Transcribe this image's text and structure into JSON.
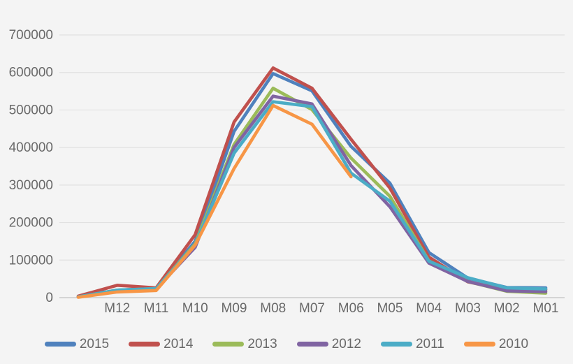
{
  "chart_theme": {
    "background": "#f4f4f4",
    "gridline_color": "#e1e1e1",
    "axis_line_color": "#c9c9c9",
    "text_color": "#696969"
  },
  "chart_data": {
    "type": "line",
    "title": "",
    "categories": [
      "",
      "M12",
      "M11",
      "M10",
      "M09",
      "M08",
      "M07",
      "M06",
      "M05",
      "M04",
      "M03",
      "M02",
      "M01"
    ],
    "series": [
      {
        "name": "2015",
        "color": "#4F81BD",
        "values": [
          2000,
          20000,
          25000,
          150000,
          443000,
          597000,
          551000,
          403000,
          305000,
          120000,
          52000,
          27000,
          26000
        ]
      },
      {
        "name": "2014",
        "color": "#C0504D",
        "values": [
          4000,
          33000,
          26000,
          168000,
          468000,
          612000,
          558000,
          422000,
          292000,
          108000,
          42000,
          20000,
          21000
        ]
      },
      {
        "name": "2013",
        "color": "#9BBB59",
        "values": [
          2000,
          20000,
          24000,
          143000,
          408000,
          558000,
          501000,
          372000,
          270000,
          98000,
          43000,
          17000,
          12000
        ]
      },
      {
        "name": "2012",
        "color": "#8064A2",
        "values": [
          2000,
          19000,
          23000,
          134000,
          400000,
          537000,
          516000,
          352000,
          242000,
          92000,
          43000,
          18000,
          16000
        ]
      },
      {
        "name": "2011",
        "color": "#4BACC6",
        "values": [
          2000,
          20000,
          24000,
          140000,
          385000,
          522000,
          509000,
          332000,
          257000,
          97000,
          53000,
          26000,
          23000
        ]
      },
      {
        "name": "2010",
        "color": "#F79646",
        "values": [
          1000,
          15000,
          19000,
          140000,
          344000,
          512000,
          462000,
          322000,
          null,
          null,
          null,
          null,
          null
        ]
      }
    ],
    "ylim": [
      0,
      700000
    ],
    "yticks": [
      0,
      100000,
      200000,
      300000,
      400000,
      500000,
      600000,
      700000
    ],
    "grid": true,
    "legend_position": "bottom"
  }
}
